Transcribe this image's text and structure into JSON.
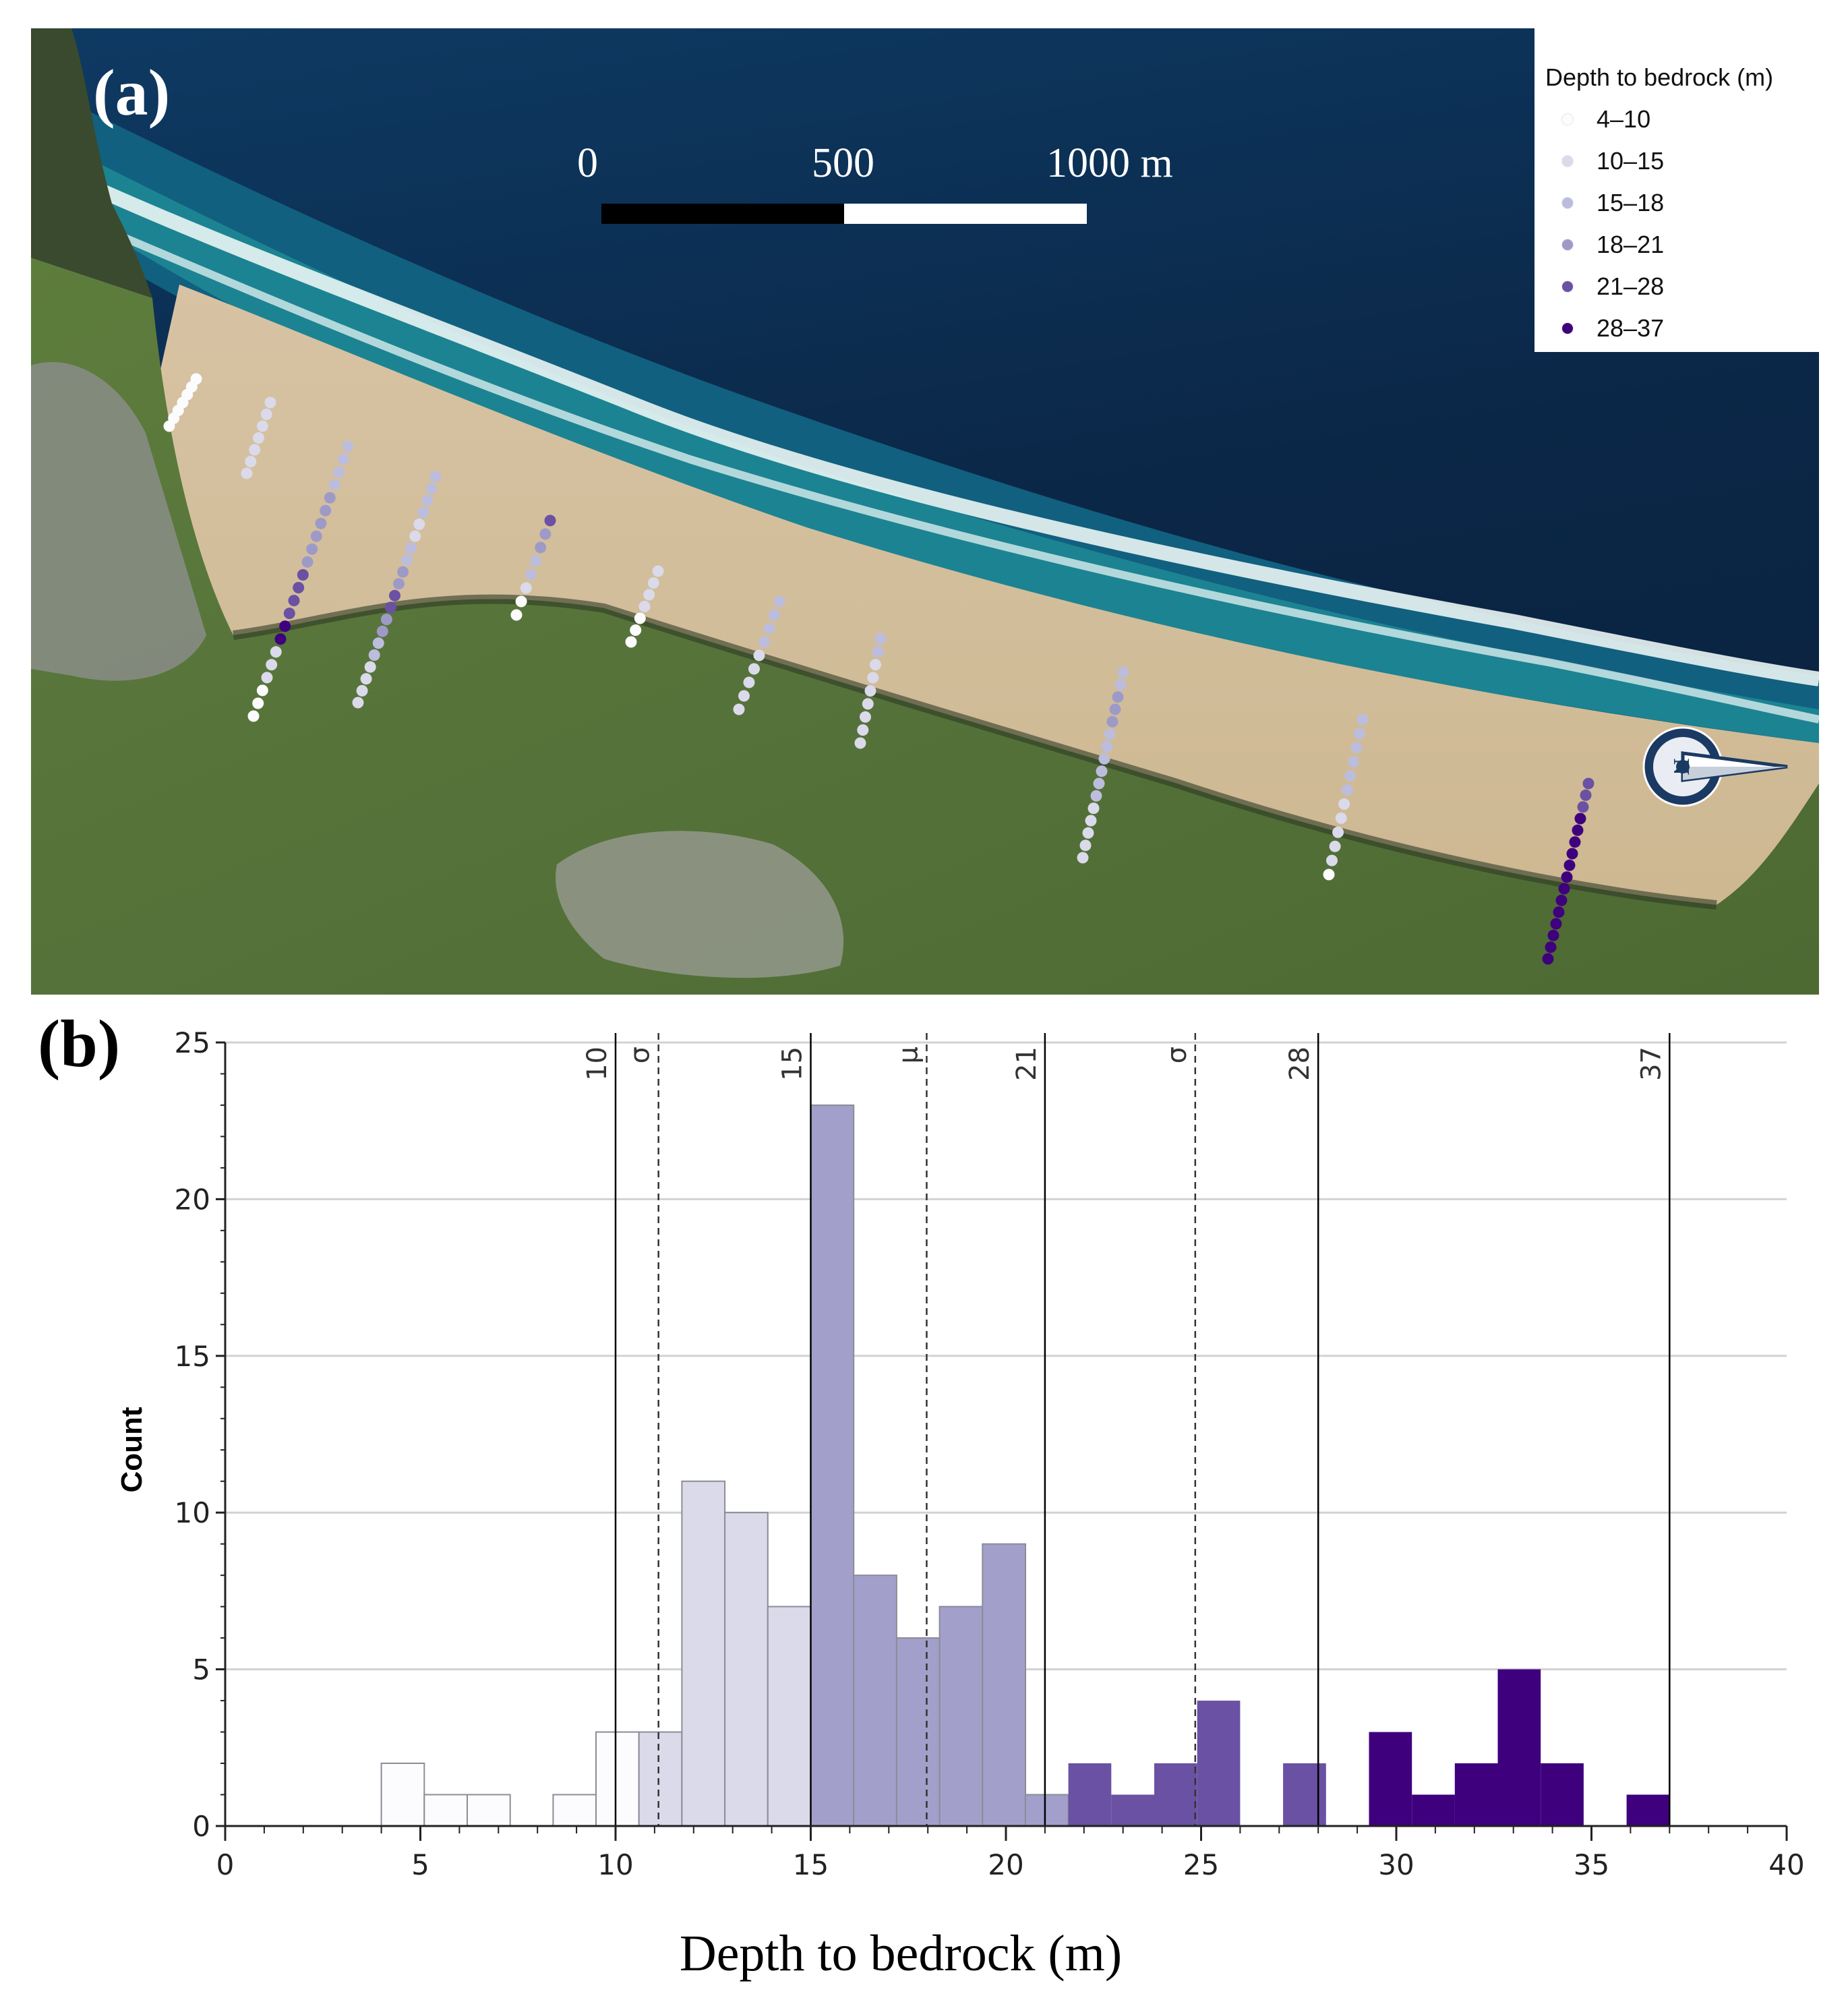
{
  "panel_a": {
    "label": "(a)",
    "scale_bar": {
      "labels": [
        "0",
        "500",
        "1000 m"
      ]
    },
    "legend": {
      "title": "Depth to bedrock (m)",
      "classes": [
        {
          "label": "4–10",
          "color": "#fcfbfd"
        },
        {
          "label": "10–15",
          "color": "#dadaeb"
        },
        {
          "label": "15–18",
          "color": "#bcbddc"
        },
        {
          "label": "18–21",
          "color": "#9e9ac8"
        },
        {
          "label": "21–28",
          "color": "#6a51a3"
        },
        {
          "label": "28–37",
          "color": "#3f007d"
        }
      ]
    },
    "north_arrow": {
      "label": "N",
      "icon": "compass-rose-icon"
    },
    "colors": {
      "ocean_deep": "#0b2747",
      "ocean_near": "#10638a",
      "surf": "#e8f4f3",
      "sand": "#d9c4a3",
      "vegetation": "#5b7a3a",
      "town": "#8c8f8c"
    }
  },
  "panel_b": {
    "label": "(b)",
    "chart_data": {
      "type": "bar",
      "subtype": "histogram",
      "xlabel": "Depth to bedrock (m)",
      "ylabel": "Count",
      "xlim": [
        0,
        40
      ],
      "ylim": [
        0,
        25
      ],
      "xticks": [
        0,
        5,
        10,
        15,
        20,
        25,
        30,
        35,
        40
      ],
      "yticks": [
        0,
        5,
        10,
        15,
        20,
        25
      ],
      "grid": "horizontal",
      "bin_width": 1.1,
      "bins": [
        {
          "start": 4.0,
          "count": 2,
          "class": 0
        },
        {
          "start": 5.1,
          "count": 1,
          "class": 0
        },
        {
          "start": 6.2,
          "count": 1,
          "class": 0
        },
        {
          "start": 8.4,
          "count": 1,
          "class": 0
        },
        {
          "start": 9.5,
          "count": 3,
          "class": 0
        },
        {
          "start": 10.6,
          "count": 3,
          "class": 1
        },
        {
          "start": 11.7,
          "count": 11,
          "class": 1
        },
        {
          "start": 12.8,
          "count": 10,
          "class": 1
        },
        {
          "start": 13.9,
          "count": 7,
          "class": 1
        },
        {
          "start": 15.0,
          "count": 23,
          "class": 3
        },
        {
          "start": 16.1,
          "count": 8,
          "class": 3
        },
        {
          "start": 17.2,
          "count": 6,
          "class": 3
        },
        {
          "start": 18.3,
          "count": 7,
          "class": 3
        },
        {
          "start": 19.4,
          "count": 9,
          "class": 3
        },
        {
          "start": 20.5,
          "count": 1,
          "class": 3
        },
        {
          "start": 21.6,
          "count": 2,
          "class": 4
        },
        {
          "start": 22.7,
          "count": 1,
          "class": 4
        },
        {
          "start": 23.8,
          "count": 2,
          "class": 4
        },
        {
          "start": 24.9,
          "count": 4,
          "class": 4
        },
        {
          "start": 27.1,
          "count": 2,
          "class": 4
        },
        {
          "start": 29.3,
          "count": 3,
          "class": 5
        },
        {
          "start": 30.4,
          "count": 1,
          "class": 5
        },
        {
          "start": 31.5,
          "count": 2,
          "class": 5
        },
        {
          "start": 32.6,
          "count": 5,
          "class": 5
        },
        {
          "start": 33.7,
          "count": 2,
          "class": 5
        },
        {
          "start": 35.9,
          "count": 1,
          "class": 5
        }
      ],
      "class_colors": [
        "#fcfbfd",
        "#dadaeb",
        "#bcbddc",
        "#a29fcb",
        "#6a51a3",
        "#3f007d"
      ],
      "class_breaks": [
        {
          "value": 10,
          "label": "10"
        },
        {
          "value": 15,
          "label": "15"
        },
        {
          "value": 21,
          "label": "21"
        },
        {
          "value": 28,
          "label": "28"
        },
        {
          "value": 37,
          "label": "37"
        }
      ],
      "stat_lines": [
        {
          "value": 11.1,
          "label": "σ"
        },
        {
          "value": 17.97,
          "label": "μ"
        },
        {
          "value": 24.85,
          "label": "σ"
        }
      ]
    }
  }
}
